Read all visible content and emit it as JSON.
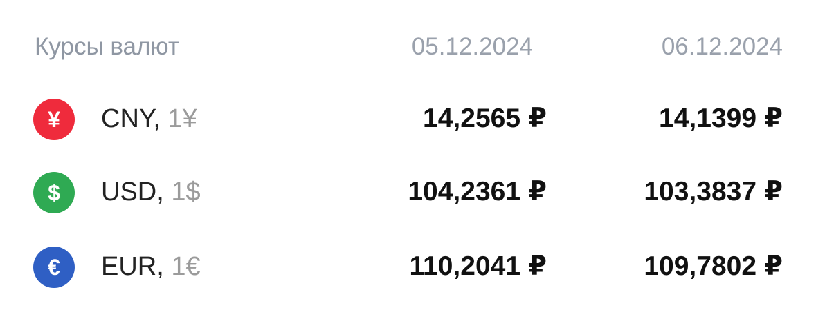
{
  "header": {
    "title": "Курсы валют",
    "date_1": "05.12.2024",
    "date_2": "06.12.2024"
  },
  "rates": [
    {
      "icon": "yuan-icon",
      "symbol_glyph": "¥",
      "color": "#ef2b3c",
      "code": "CNY,",
      "unit": "1¥",
      "value_1": "14,2565 ₽",
      "value_2": "14,1399 ₽"
    },
    {
      "icon": "dollar-icon",
      "symbol_glyph": "$",
      "color": "#2faa53",
      "code": "USD,",
      "unit": "1$",
      "value_1": "104,2361 ₽",
      "value_2": "103,3837 ₽"
    },
    {
      "icon": "euro-icon",
      "symbol_glyph": "€",
      "color": "#2f5fc4",
      "code": "EUR,",
      "unit": "1€",
      "value_1": "110,2041 ₽",
      "value_2": "109,7802 ₽"
    }
  ]
}
